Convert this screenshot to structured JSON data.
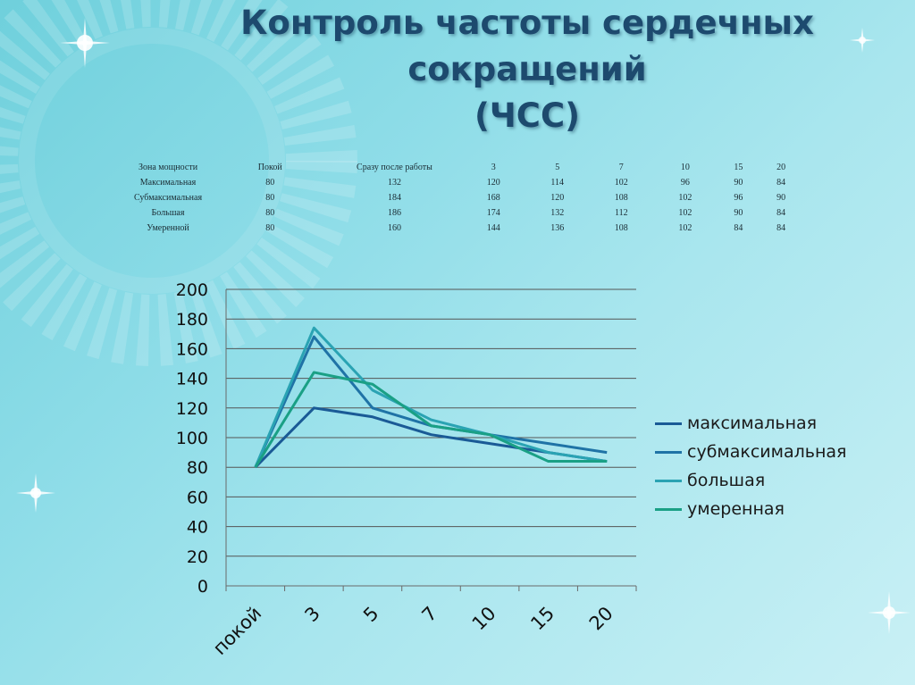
{
  "title_lines": [
    "Контроль частоты сердечных",
    "сокращений",
    "(ЧСС)"
  ],
  "table": {
    "headers": [
      "Зона мощности",
      "Покой",
      "Сразу после работы",
      "3",
      "5",
      "7",
      "10",
      "15",
      "20"
    ],
    "rows": [
      [
        "Максимальная",
        "80",
        "132",
        "120",
        "114",
        "102",
        "96",
        "90",
        "84"
      ],
      [
        "Субмаксимальная",
        "80",
        "184",
        "168",
        "120",
        "108",
        "102",
        "96",
        "90"
      ],
      [
        "Большая",
        "80",
        "186",
        "174",
        "132",
        "112",
        "102",
        "90",
        "84"
      ],
      [
        "Умеренной",
        "80",
        "160",
        "144",
        "136",
        "108",
        "102",
        "84",
        "84"
      ]
    ]
  },
  "colors": {
    "title": "#1d4a6e",
    "grid": "#555555",
    "axis": "#6a6a6a"
  },
  "chart_data": {
    "type": "line",
    "categories": [
      "покой",
      "3",
      "5",
      "7",
      "10",
      "15",
      "20"
    ],
    "ylim": [
      0,
      200
    ],
    "yticks": [
      "0",
      "20",
      "40",
      "60",
      "80",
      "100",
      "120",
      "140",
      "160",
      "180",
      "200"
    ],
    "grid": true,
    "legend_position": "right",
    "series": [
      {
        "name": "максимальная",
        "color": "#1a5a96",
        "values": [
          80,
          120,
          114,
          102,
          96,
          90,
          84
        ]
      },
      {
        "name": "субмаксимальная",
        "color": "#1f73a6",
        "values": [
          80,
          168,
          120,
          108,
          102,
          96,
          90
        ]
      },
      {
        "name": "большая",
        "color": "#2aa3b3",
        "values": [
          80,
          174,
          132,
          112,
          102,
          90,
          84
        ]
      },
      {
        "name": "умеренная",
        "color": "#1aa085",
        "values": [
          80,
          144,
          136,
          108,
          102,
          84,
          84
        ]
      }
    ]
  }
}
